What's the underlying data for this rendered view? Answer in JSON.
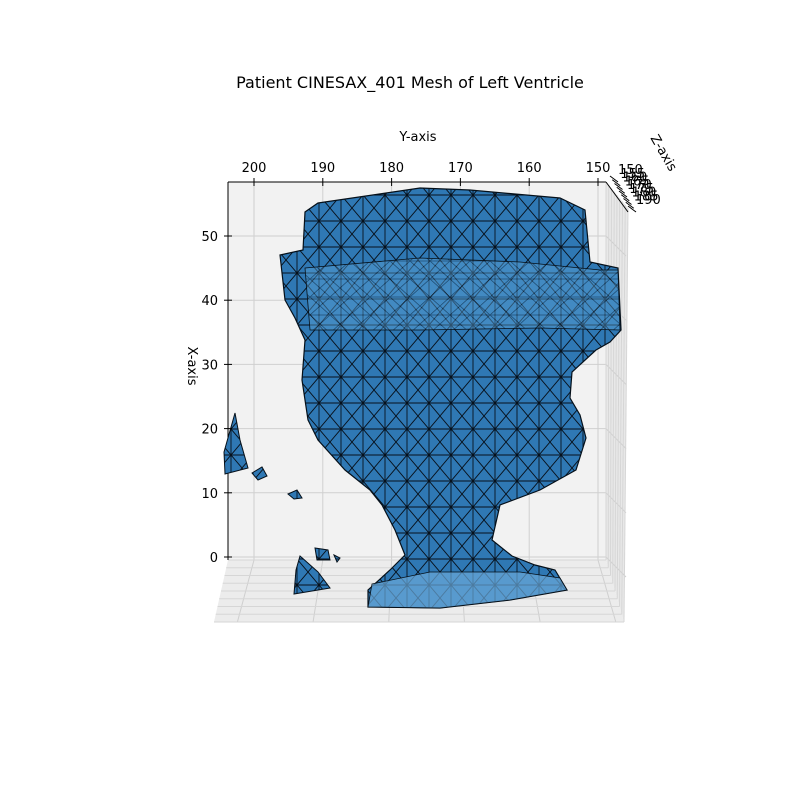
{
  "chart_data": {
    "type": "3d-mesh",
    "title": "Patient CINESAX_401 Mesh of Left Ventricle",
    "xlabel": "X-axis",
    "ylabel": "Y-axis",
    "zlabel": "Z-axis",
    "x_ticks": [
      0,
      10,
      20,
      30,
      40,
      50
    ],
    "y_ticks": [
      200,
      190,
      180,
      170,
      160,
      150
    ],
    "z_ticks": [
      150,
      155,
      160,
      165,
      170,
      175,
      180,
      185,
      190
    ],
    "z_tick_labels_visible": [
      "150",
      "190"
    ],
    "grid": true,
    "mesh_color": "#1f77b4",
    "edge_color": "#000000",
    "pane_color": "#f2f2f2"
  }
}
